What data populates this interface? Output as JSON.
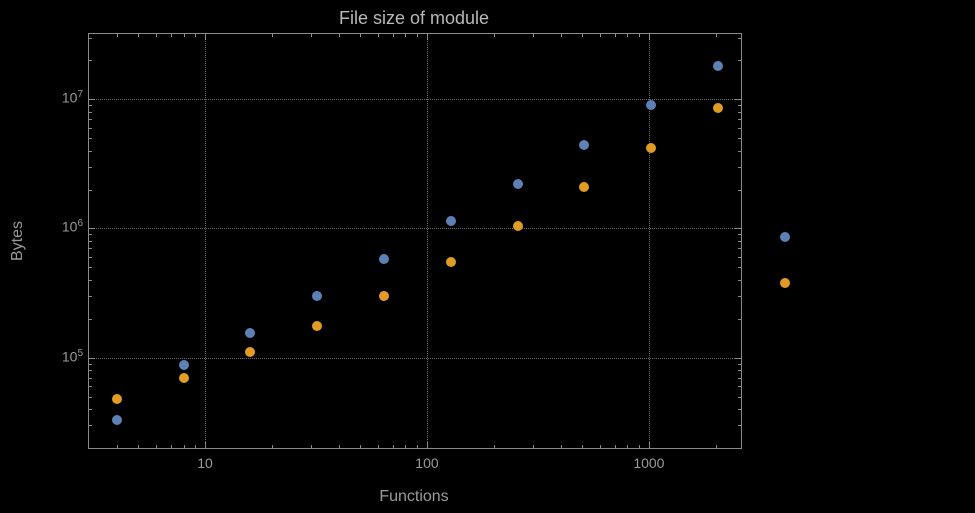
{
  "chart_data": {
    "type": "scatter",
    "title": "File size of module",
    "xlabel": "Functions",
    "ylabel": "Bytes",
    "x_scale": "log",
    "y_scale": "log",
    "xlim": [
      3.0,
      2600
    ],
    "ylim": [
      20000,
      32000000
    ],
    "x_major_ticks": [
      10,
      100,
      1000
    ],
    "x_tick_labels": [
      "10",
      "100",
      "1000"
    ],
    "y_major_ticks": [
      100000,
      1000000,
      10000000
    ],
    "y_tick_base": "10",
    "y_tick_exponents": [
      "5",
      "6",
      "7"
    ],
    "grid": "dotted",
    "legend": "none",
    "series": [
      {
        "name": "series-1-blue",
        "color": "#5e81b5",
        "x": [
          4,
          8,
          16,
          32,
          64,
          128,
          256,
          512,
          1024,
          2048,
          4096
        ],
        "y": [
          33000,
          88000,
          155000,
          300000,
          580000,
          1150000,
          2200000,
          4400000,
          9000000,
          18000000,
          860000
        ]
      },
      {
        "name": "series-2-orange",
        "color": "#e19c24",
        "x": [
          4,
          8,
          16,
          32,
          64,
          128,
          256,
          512,
          1024,
          2048,
          4096
        ],
        "y": [
          48000,
          70000,
          110000,
          175000,
          300000,
          550000,
          1050000,
          2100000,
          4200000,
          8500000,
          380000
        ]
      }
    ]
  },
  "colors": {
    "background": "#000000",
    "frame": "#8a8a8a",
    "grid": "#6b6b6b",
    "text": "#9a9a9a",
    "title_text": "#b8b8b8"
  }
}
